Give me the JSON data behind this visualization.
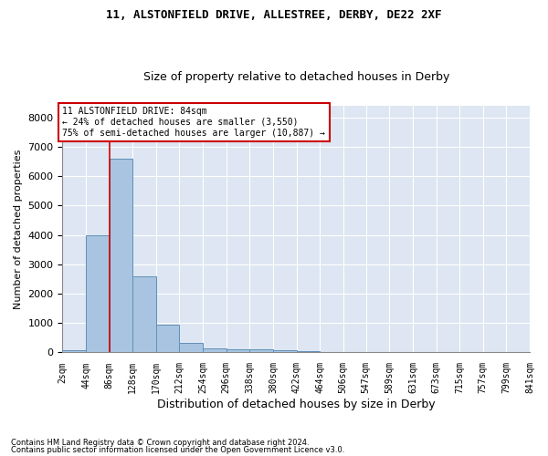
{
  "title1": "11, ALSTONFIELD DRIVE, ALLESTREE, DERBY, DE22 2XF",
  "title2": "Size of property relative to detached houses in Derby",
  "xlabel": "Distribution of detached houses by size in Derby",
  "ylabel": "Number of detached properties",
  "footnote1": "Contains HM Land Registry data © Crown copyright and database right 2024.",
  "footnote2": "Contains public sector information licensed under the Open Government Licence v3.0.",
  "annotation_line1": "11 ALSTONFIELD DRIVE: 84sqm",
  "annotation_line2": "← 24% of detached houses are smaller (3,550)",
  "annotation_line3": "75% of semi-detached houses are larger (10,887) →",
  "bar_color": "#a8c4e0",
  "bar_edge_color": "#6090b8",
  "bar_left_edges": [
    2,
    44,
    86,
    128,
    170,
    212,
    254,
    296,
    338,
    380,
    422,
    464,
    506,
    547,
    589,
    631,
    673,
    715,
    757,
    799
  ],
  "bar_heights": [
    80,
    4000,
    6600,
    2600,
    950,
    310,
    130,
    120,
    100,
    80,
    60,
    0,
    0,
    0,
    0,
    0,
    0,
    0,
    0,
    0
  ],
  "bin_width": 42,
  "red_line_x": 86,
  "xtick_labels": [
    "2sqm",
    "44sqm",
    "86sqm",
    "128sqm",
    "170sqm",
    "212sqm",
    "254sqm",
    "296sqm",
    "338sqm",
    "380sqm",
    "422sqm",
    "464sqm",
    "506sqm",
    "547sqm",
    "589sqm",
    "631sqm",
    "673sqm",
    "715sqm",
    "757sqm",
    "799sqm",
    "841sqm"
  ],
  "xtick_positions": [
    2,
    44,
    86,
    128,
    170,
    212,
    254,
    296,
    338,
    380,
    422,
    464,
    506,
    547,
    589,
    631,
    673,
    715,
    757,
    799,
    841
  ],
  "ylim": [
    0,
    8400
  ],
  "yticks": [
    0,
    1000,
    2000,
    3000,
    4000,
    5000,
    6000,
    7000,
    8000
  ],
  "xlim_left": 2,
  "xlim_right": 841,
  "background_color": "#dde6f2",
  "fig_background_color": "#ffffff",
  "grid_color": "#ffffff",
  "annotation_box_facecolor": "#ffffff",
  "annotation_box_edgecolor": "#cc0000",
  "red_line_color": "#cc0000",
  "title1_fontsize": 9,
  "title2_fontsize": 9,
  "ylabel_fontsize": 8,
  "xlabel_fontsize": 9,
  "ytick_fontsize": 8,
  "xtick_fontsize": 7,
  "ann_fontsize": 7,
  "footnote_fontsize": 6
}
